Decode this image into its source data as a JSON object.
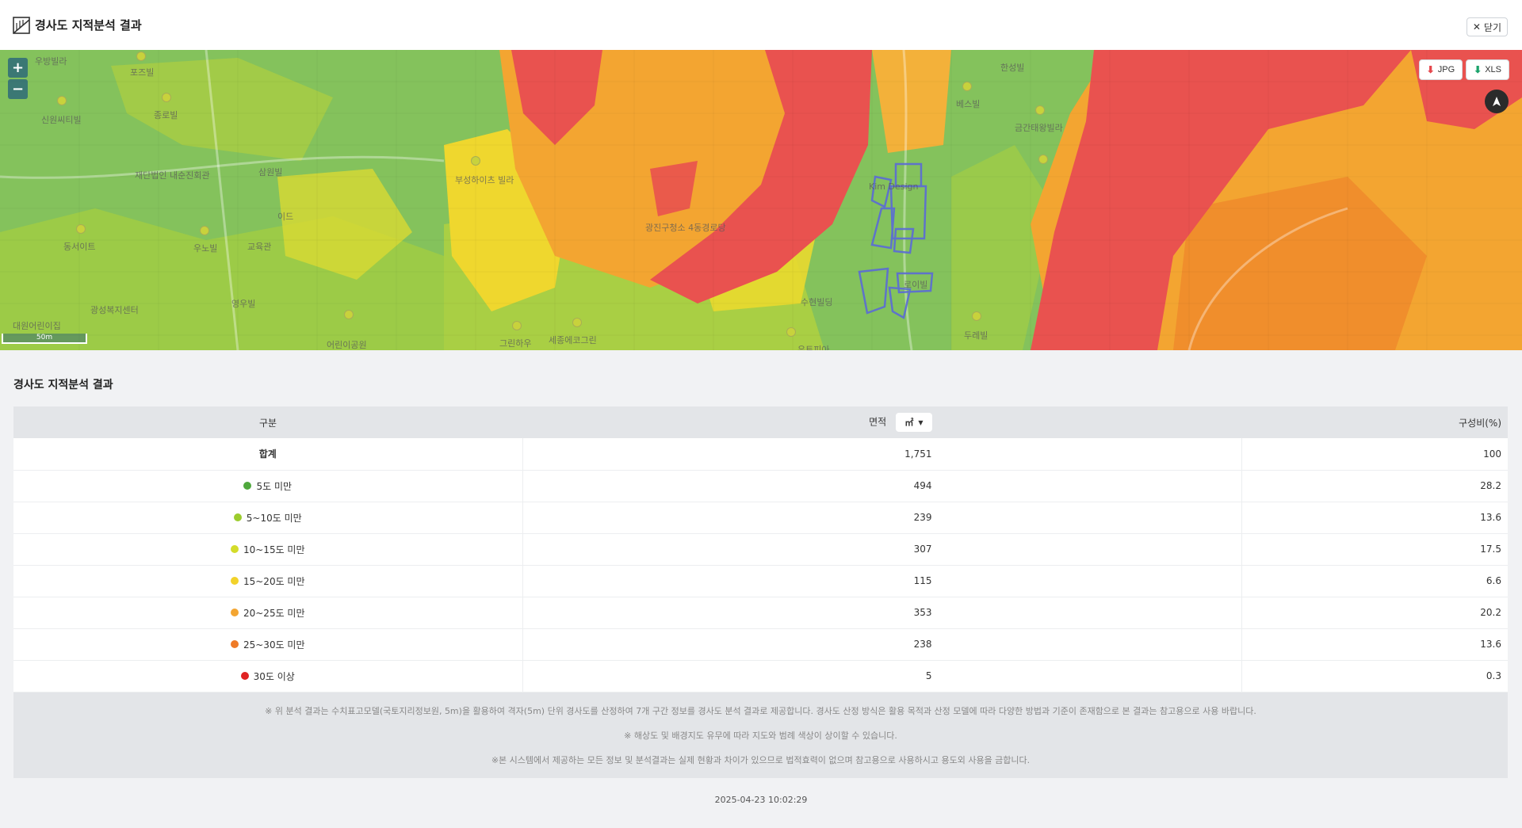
{
  "header": {
    "title": "경사도 지적분석 결과",
    "close_icon": "close-icon",
    "close_label": "닫기"
  },
  "map": {
    "zoom_in": "+",
    "zoom_out": "−",
    "downloads": [
      {
        "label": "JPG",
        "icon": "download-icon"
      },
      {
        "label": "XLS",
        "icon": "download-icon"
      }
    ],
    "scale_label": "50m",
    "labels": [
      "우방빌라",
      "포즈빌",
      "신원씨티빌",
      "종로빌",
      "재단법인 내순진회관",
      "동서이트",
      "우노빌",
      "교육관",
      "삼원빌",
      "이드",
      "부성하이츠 빌라",
      "광진구청소 4동경로당",
      "수현빌딩",
      "Kim Design",
      "베스빌",
      "한성빌",
      "금간태왕빌라",
      "두레빌",
      "세종에코그린",
      "대원어린이집",
      "광성복지센터",
      "어린이공원",
      "그린하우",
      "로이빌",
      "영우빌",
      "유토피아"
    ]
  },
  "section_title": "경사도 지적분석 결과",
  "table": {
    "headers": {
      "category": "구분",
      "area": "면적",
      "ratio": "구성비(%)"
    },
    "unit": "㎡",
    "total": {
      "label": "합계",
      "area": "1,751",
      "ratio": "100"
    },
    "rows": [
      {
        "label": "5도 미만",
        "color": "#4fa83d",
        "area": "494",
        "ratio": "28.2"
      },
      {
        "label": "5~10도 미만",
        "color": "#9ccc2e",
        "area": "239",
        "ratio": "13.6"
      },
      {
        "label": "10~15도 미만",
        "color": "#d4dc2a",
        "area": "307",
        "ratio": "17.5"
      },
      {
        "label": "15~20도 미만",
        "color": "#f2d22a",
        "area": "115",
        "ratio": "6.6"
      },
      {
        "label": "20~25도 미만",
        "color": "#f3a531",
        "area": "353",
        "ratio": "20.2"
      },
      {
        "label": "25~30도 미만",
        "color": "#ee7a26",
        "area": "238",
        "ratio": "13.6"
      },
      {
        "label": "30도 이상",
        "color": "#e02323",
        "area": "5",
        "ratio": "0.3"
      }
    ]
  },
  "notes": [
    "※ 위 분석 결과는 수치표고모델(국토지리정보원, 5m)을 활용하여 격자(5m) 단위 경사도를 산정하여 7개 구간 정보를 경사도 분석 결과로 제공합니다. 경사도 산정 방식은 활용 목적과 산정 모델에 따라 다양한 방법과 기준이 존재함으로 본 결과는 참고용으로 사용 바랍니다.",
    "※ 해상도 및 배경지도 유무에 따라 지도와 범례 색상이 상이할 수 있습니다.",
    "※본 시스템에서 제공하는 모든 정보 및 분석결과는 실제 현황과 차이가 있으므로 법적효력이 없으며 참고용으로 사용하시고 용도외 사용을 금합니다."
  ],
  "timestamp": "2025-04-23 10:02:29"
}
